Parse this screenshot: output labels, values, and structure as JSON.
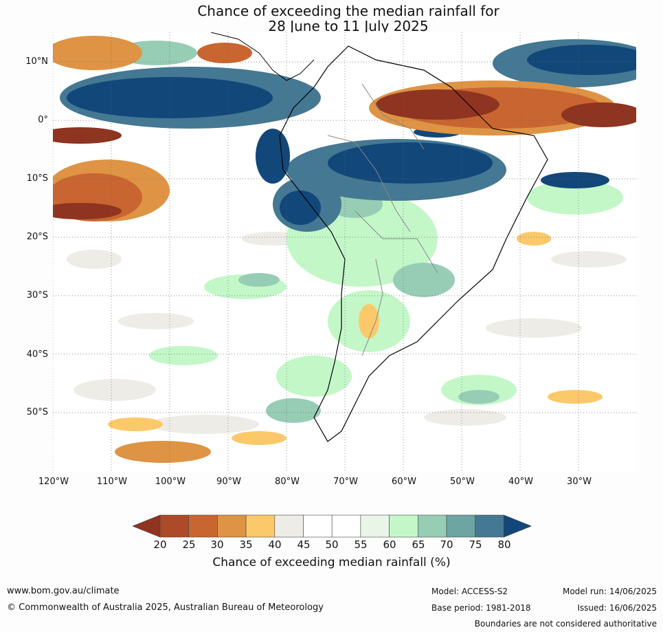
{
  "title": {
    "line1": "Chance of exceeding the median rainfall for",
    "line2": "28 June to 11 July 2025"
  },
  "axes": {
    "lat_ticks": [
      "10°N",
      "0°",
      "10°S",
      "20°S",
      "30°S",
      "40°S",
      "50°S"
    ],
    "lon_ticks": [
      "120°W",
      "110°W",
      "100°W",
      "90°W",
      "80°W",
      "70°W",
      "60°W",
      "50°W",
      "40°W",
      "30°W"
    ]
  },
  "colorbar": {
    "labels": [
      "20",
      "25",
      "30",
      "35",
      "40",
      "45",
      "50",
      "55",
      "60",
      "65",
      "70",
      "75",
      "80"
    ],
    "colors": [
      "#8e3420",
      "#ad4a27",
      "#c96530",
      "#df9344",
      "#fbc96a",
      "#eeece6",
      "#ffffff",
      "#ffffff",
      "#e9f5e7",
      "#c3f7c8",
      "#97cdb5",
      "#6da5a3",
      "#447893",
      "#12477a"
    ],
    "title": "Chance of exceeding median rainfall (%)"
  },
  "footer": {
    "url": "www.bom.gov.au/climate",
    "copyright": "© Commonwealth of Australia 2025, Australian Bureau of Meteorology",
    "model": "Model: ACCESS-S2",
    "base_period": "Base period: 1981-2018",
    "model_run": "Model run: 14/06/2025",
    "issued": "Issued: 16/06/2025",
    "disclaimer": "Boundaries are not considered authoritative"
  }
}
